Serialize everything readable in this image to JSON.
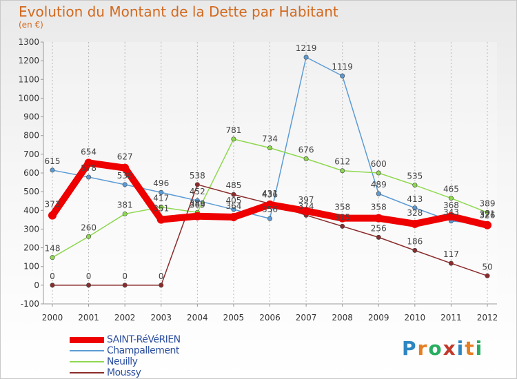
{
  "title": "Evolution du Montant de la Dette par Habitant",
  "subtitle": "(en €)",
  "logo": {
    "letters": [
      "P",
      "r",
      "o",
      "x",
      "i",
      "t",
      "i"
    ],
    "colors": [
      "#2e86c1",
      "#e67e22",
      "#27ae60",
      "#c0392b",
      "#2e86c1",
      "#e67e22",
      "#27ae60"
    ]
  },
  "chart_data": {
    "type": "line",
    "title": "Evolution du Montant de la Dette par Habitant",
    "subtitle": "(en €)",
    "x": [
      "2000",
      "2001",
      "2002",
      "2003",
      "2004",
      "2005",
      "2006",
      "2007",
      "2008",
      "2009",
      "2010",
      "2011",
      "2012"
    ],
    "ylim": [
      -100,
      1300
    ],
    "yticks": [
      -100,
      0,
      100,
      200,
      300,
      400,
      500,
      600,
      700,
      800,
      900,
      1000,
      1100,
      1200,
      1300
    ],
    "grid": "vertical",
    "legend_position": "bottom-left",
    "series": [
      {
        "name": "SAINT-RéVéRIEN",
        "color": "#ee0000",
        "width": "thick",
        "values": [
          373,
          654,
          627,
          351,
          369,
          364,
          431,
          397,
          358,
          358,
          328,
          368,
          321
        ]
      },
      {
        "name": "Champallement",
        "color": "#5b9bd5",
        "values": [
          615,
          578,
          538,
          496,
          452,
          405,
          356,
          1219,
          1119,
          489,
          413,
          343,
          326
        ]
      },
      {
        "name": "Neuilly",
        "color": "#8ed84f",
        "values": [
          148,
          260,
          381,
          417,
          389,
          781,
          734,
          676,
          612,
          600,
          535,
          465,
          389
        ]
      },
      {
        "name": "Moussy",
        "color": "#8b2c2c",
        "values": [
          0,
          0,
          0,
          0,
          538,
          485,
          436,
          374,
          315,
          256,
          186,
          117,
          50
        ]
      }
    ]
  }
}
